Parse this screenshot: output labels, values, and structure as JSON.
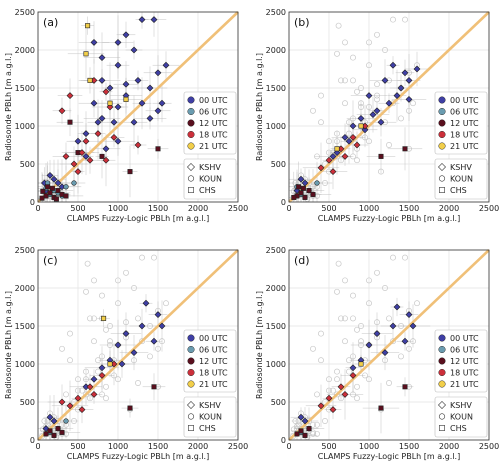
{
  "chart_data": [
    {
      "type": "scatter",
      "panel": "(a)",
      "xlabel": "CLAMPS Fuzzy-Logic PBLh [m a.g.l.]",
      "ylabel": "Radiosonde PBLh [m a.g.l.]",
      "xlim": [
        0,
        2500
      ],
      "ylim": [
        0,
        2500
      ],
      "xticks": [
        "0",
        "500",
        "1000",
        "1500",
        "2000",
        "2500"
      ],
      "yticks": [
        "0",
        "500",
        "1000",
        "1500",
        "2000",
        "2500"
      ],
      "grid": true,
      "reference_line": "1:1",
      "legend_time": [
        "00 UTC",
        "06 UTC",
        "12 UTC",
        "18 UTC",
        "21 UTC"
      ],
      "legend_site": [
        "KSHV",
        "KOUN",
        "CHS"
      ],
      "series": [
        {
          "name": "00 UTC",
          "points": [
            [
              1300,
              2400
            ],
            [
              1100,
              2200
            ],
            [
              1450,
              2400
            ],
            [
              700,
              2100
            ],
            [
              800,
              1900
            ],
            [
              1200,
              2000
            ],
            [
              1000,
              1800
            ],
            [
              1500,
              1700
            ],
            [
              1400,
              1500
            ],
            [
              900,
              1500
            ],
            [
              1250,
              1600
            ],
            [
              1600,
              1800
            ],
            [
              1100,
              1400
            ],
            [
              1000,
              1250
            ],
            [
              1300,
              1300
            ],
            [
              1500,
              1200
            ],
            [
              700,
              1300
            ],
            [
              800,
              1100
            ],
            [
              600,
              900
            ],
            [
              500,
              800
            ],
            [
              850,
              700
            ],
            [
              1000,
              800
            ],
            [
              600,
              600
            ],
            [
              750,
              1050
            ],
            [
              1200,
              1050
            ],
            [
              1400,
              1100
            ],
            [
              950,
              1050
            ],
            [
              1550,
              1300
            ],
            [
              1100,
              1550
            ],
            [
              1000,
              2100
            ],
            [
              800,
              1600
            ],
            [
              150,
              350
            ],
            [
              200,
              300
            ],
            [
              250,
              250
            ],
            [
              300,
              200
            ],
            [
              100,
              150
            ],
            [
              80,
              250
            ]
          ],
          "site": "KSHV"
        },
        {
          "name": "06 UTC",
          "points": [
            [
              150,
              100
            ],
            [
              200,
              150
            ],
            [
              250,
              120
            ],
            [
              350,
              200
            ],
            [
              100,
              180
            ],
            [
              300,
              80
            ],
            [
              450,
              250
            ],
            [
              120,
              250
            ]
          ],
          "site": "KOUN"
        },
        {
          "name": "12 UTC",
          "points": [
            [
              100,
              80
            ],
            [
              150,
              120
            ],
            [
              200,
              60
            ],
            [
              250,
              150
            ],
            [
              120,
              200
            ],
            [
              300,
              100
            ],
            [
              180,
              180
            ],
            [
              60,
              140
            ],
            [
              350,
              80
            ],
            [
              1150,
              400
            ],
            [
              1500,
              700
            ],
            [
              400,
              1050
            ],
            [
              500,
              650
            ],
            [
              800,
              600
            ],
            [
              50,
              50
            ],
            [
              230,
              40
            ]
          ],
          "site": "CHS"
        },
        {
          "name": "18 UTC",
          "points": [
            [
              850,
              1450
            ],
            [
              300,
              1200
            ],
            [
              400,
              1400
            ],
            [
              700,
              1600
            ],
            [
              900,
              1250
            ],
            [
              1250,
              750
            ],
            [
              650,
              550
            ],
            [
              450,
              500
            ],
            [
              550,
              650
            ],
            [
              750,
              900
            ],
            [
              950,
              850
            ],
            [
              350,
              600
            ],
            [
              600,
              800
            ],
            [
              500,
              400
            ],
            [
              850,
              550
            ]
          ],
          "site": "KSHV"
        },
        {
          "name": "21 UTC",
          "points": [
            [
              620,
              2320
            ],
            [
              650,
              1600
            ],
            [
              900,
              1300
            ],
            [
              1100,
              1350
            ],
            [
              600,
              1950
            ]
          ],
          "site": "CHS"
        }
      ]
    },
    {
      "type": "scatter",
      "panel": "(b)",
      "xlabel": "CLAMPS Fuzzy-Logic PBLh [m a.g.l.]",
      "ylabel": "Radiosonde PBLh [m a.g.l.]",
      "xlim": [
        0,
        2500
      ],
      "ylim": [
        0,
        2500
      ],
      "xticks": [
        "0",
        "500",
        "1000",
        "1500",
        "2000",
        "2500"
      ],
      "yticks": [
        "0",
        "500",
        "1000",
        "1500",
        "2000",
        "2500"
      ],
      "grid": true,
      "reference_line": "1:1",
      "legend_time": [
        "00 UTC",
        "06 UTC",
        "12 UTC",
        "18 UTC",
        "21 UTC"
      ],
      "legend_site": [
        "KSHV",
        "KOUN",
        "CHS"
      ],
      "series": [
        {
          "name": "00 UTC",
          "points": [
            [
              1300,
              1800
            ],
            [
              1450,
              1700
            ],
            [
              1600,
              1750
            ],
            [
              1200,
              1600
            ],
            [
              1000,
              1400
            ],
            [
              1100,
              1200
            ],
            [
              1400,
              1500
            ],
            [
              900,
              1100
            ],
            [
              1500,
              1350
            ],
            [
              800,
              1000
            ],
            [
              1250,
              1300
            ],
            [
              700,
              850
            ],
            [
              1050,
              1150
            ],
            [
              600,
              650
            ],
            [
              1350,
              1400
            ],
            [
              950,
              950
            ],
            [
              1150,
              1050
            ],
            [
              550,
              600
            ],
            [
              750,
              800
            ],
            [
              1500,
              1600
            ],
            [
              150,
              300
            ],
            [
              200,
              250
            ],
            [
              100,
              150
            ]
          ],
          "site": "KSHV"
        },
        {
          "name": "06 UTC",
          "points": [
            [
              150,
              100
            ],
            [
              250,
              150
            ],
            [
              100,
              200
            ],
            [
              350,
              250
            ],
            [
              300,
              100
            ]
          ],
          "site": "KOUN"
        },
        {
          "name": "12 UTC",
          "points": [
            [
              100,
              80
            ],
            [
              150,
              120
            ],
            [
              200,
              60
            ],
            [
              250,
              150
            ],
            [
              120,
              200
            ],
            [
              300,
              100
            ],
            [
              180,
              180
            ],
            [
              1150,
              600
            ],
            [
              1450,
              700
            ],
            [
              60,
              60
            ]
          ],
          "site": "CHS"
        },
        {
          "name": "18 UTC",
          "points": [
            [
              500,
              550
            ],
            [
              650,
              700
            ],
            [
              800,
              850
            ],
            [
              950,
              1000
            ],
            [
              400,
              450
            ],
            [
              700,
              600
            ],
            [
              850,
              750
            ],
            [
              550,
              400
            ]
          ],
          "site": "KSHV"
        },
        {
          "name": "21 UTC",
          "points": [
            [
              600,
              700
            ],
            [
              900,
              1000
            ]
          ],
          "site": "CHS"
        }
      ]
    },
    {
      "type": "scatter",
      "panel": "(c)",
      "xlabel": "CLAMPS Fuzzy-Logic PBLh [m a.g.l.]",
      "ylabel": "Radiosonde PBLh [m a.g.l.]",
      "xlim": [
        0,
        2500
      ],
      "ylim": [
        0,
        2500
      ],
      "xticks": [
        "0",
        "500",
        "1000",
        "1500",
        "2000",
        "2500"
      ],
      "yticks": [
        "0",
        "500",
        "1000",
        "1500",
        "2000",
        "2500"
      ],
      "grid": true,
      "reference_line": "1:1",
      "legend_time": [
        "00 UTC",
        "06 UTC",
        "12 UTC",
        "18 UTC",
        "21 UTC"
      ],
      "legend_site": [
        "KSHV",
        "KOUN",
        "CHS"
      ],
      "series": [
        {
          "name": "00 UTC",
          "points": [
            [
              1350,
              1800
            ],
            [
              1500,
              1650
            ],
            [
              1300,
              1500
            ],
            [
              1100,
              1400
            ],
            [
              1000,
              1250
            ],
            [
              1450,
              1300
            ],
            [
              900,
              1050
            ],
            [
              1200,
              1150
            ],
            [
              800,
              950
            ],
            [
              1550,
              1500
            ],
            [
              700,
              800
            ],
            [
              1050,
              1000
            ],
            [
              600,
              700
            ],
            [
              150,
              300
            ],
            [
              200,
              250
            ],
            [
              100,
              150
            ]
          ],
          "site": "KSHV"
        },
        {
          "name": "06 UTC",
          "points": [
            [
              150,
              100
            ],
            [
              250,
              150
            ],
            [
              350,
              250
            ]
          ],
          "site": "KOUN"
        },
        {
          "name": "12 UTC",
          "points": [
            [
              100,
              80
            ],
            [
              150,
              120
            ],
            [
              200,
              60
            ],
            [
              250,
              150
            ],
            [
              300,
              100
            ],
            [
              1150,
              420
            ],
            [
              1450,
              700
            ]
          ],
          "site": "CHS"
        },
        {
          "name": "18 UTC",
          "points": [
            [
              500,
              550
            ],
            [
              650,
              700
            ],
            [
              800,
              850
            ],
            [
              950,
              1000
            ],
            [
              400,
              450
            ],
            [
              700,
              600
            ],
            [
              550,
              400
            ],
            [
              300,
              500
            ]
          ],
          "site": "KSHV"
        },
        {
          "name": "21 UTC",
          "points": [
            [
              820,
              1600
            ],
            [
              900,
              1000
            ]
          ],
          "site": "CHS"
        }
      ]
    },
    {
      "type": "scatter",
      "panel": "(d)",
      "xlabel": "CLAMPS Fuzzy-Logic PBLh [m a.g.l.]",
      "ylabel": "Radiosonde PBLh [m a.g.l.]",
      "xlim": [
        0,
        2500
      ],
      "ylim": [
        0,
        2500
      ],
      "xticks": [
        "0",
        "500",
        "1000",
        "1500",
        "2000",
        "2500"
      ],
      "yticks": [
        "0",
        "500",
        "1000",
        "1500",
        "2000",
        "2500"
      ],
      "grid": true,
      "reference_line": "1:1",
      "legend_time": [
        "00 UTC",
        "06 UTC",
        "12 UTC",
        "18 UTC",
        "21 UTC"
      ],
      "legend_site": [
        "KSHV",
        "KOUN",
        "CHS"
      ],
      "series": [
        {
          "name": "00 UTC",
          "points": [
            [
              1350,
              1750
            ],
            [
              1500,
              1650
            ],
            [
              1300,
              1500
            ],
            [
              1100,
              1400
            ],
            [
              1000,
              1250
            ],
            [
              1450,
              1300
            ],
            [
              900,
              1050
            ],
            [
              1200,
              1150
            ],
            [
              1550,
              1500
            ],
            [
              800,
              950
            ],
            [
              150,
              300
            ],
            [
              200,
              250
            ]
          ],
          "site": "KSHV"
        },
        {
          "name": "06 UTC",
          "points": [
            [
              150,
              100
            ],
            [
              250,
              150
            ]
          ],
          "site": "KOUN"
        },
        {
          "name": "12 UTC",
          "points": [
            [
              100,
              80
            ],
            [
              150,
              120
            ],
            [
              200,
              60
            ],
            [
              250,
              150
            ],
            [
              1150,
              420
            ],
            [
              1450,
              700
            ]
          ],
          "site": "CHS"
        },
        {
          "name": "18 UTC",
          "points": [
            [
              500,
              550
            ],
            [
              650,
              700
            ],
            [
              800,
              850
            ],
            [
              400,
              450
            ],
            [
              700,
              600
            ],
            [
              550,
              400
            ]
          ],
          "site": "KSHV"
        },
        {
          "name": "21 UTC",
          "points": [
            [
              900,
              1000
            ]
          ],
          "site": "CHS"
        }
      ]
    }
  ],
  "colors": {
    "00 UTC": "#3f3fa5",
    "06 UTC": "#6a9cb0",
    "12 UTC": "#5a0f1e",
    "18 UTC": "#cc2f3a",
    "21 UTC": "#f2cf4a",
    "reference_line": "#f0c078",
    "faded_point": "#d8d8d8",
    "grid": "#e2e2e2"
  }
}
